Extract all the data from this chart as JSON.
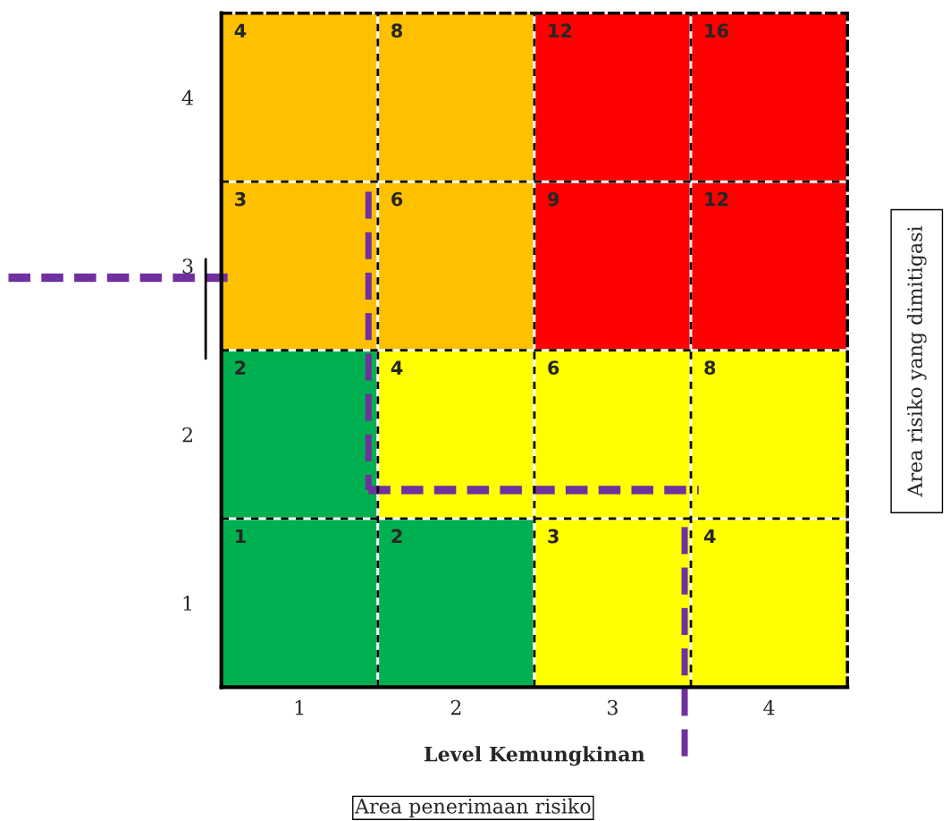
{
  "chart_data": {
    "type": "heatmap",
    "xlabel": "Level Kemungkinan",
    "categories": [
      "1",
      "2",
      "3",
      "4"
    ],
    "y_categories": [
      "4",
      "3",
      "2",
      "1"
    ],
    "cells": [
      [
        4,
        8,
        12,
        16
      ],
      [
        3,
        6,
        9,
        12
      ],
      [
        2,
        4,
        6,
        8
      ],
      [
        1,
        2,
        3,
        4
      ]
    ],
    "colors": [
      [
        "#ffc000",
        "#ffc000",
        "#ff0000",
        "#ff0000"
      ],
      [
        "#ffc000",
        "#ffc000",
        "#ff0000",
        "#ff0000"
      ],
      [
        "#00b050",
        "#ffff00",
        "#ffff00",
        "#ffff00"
      ],
      [
        "#00b050",
        "#00b050",
        "#ffff00",
        "#ffff00"
      ]
    ],
    "data_labels": true,
    "annotations": [
      "Area risiko yang dimitigasi",
      "Area penerimaan risiko"
    ]
  }
}
